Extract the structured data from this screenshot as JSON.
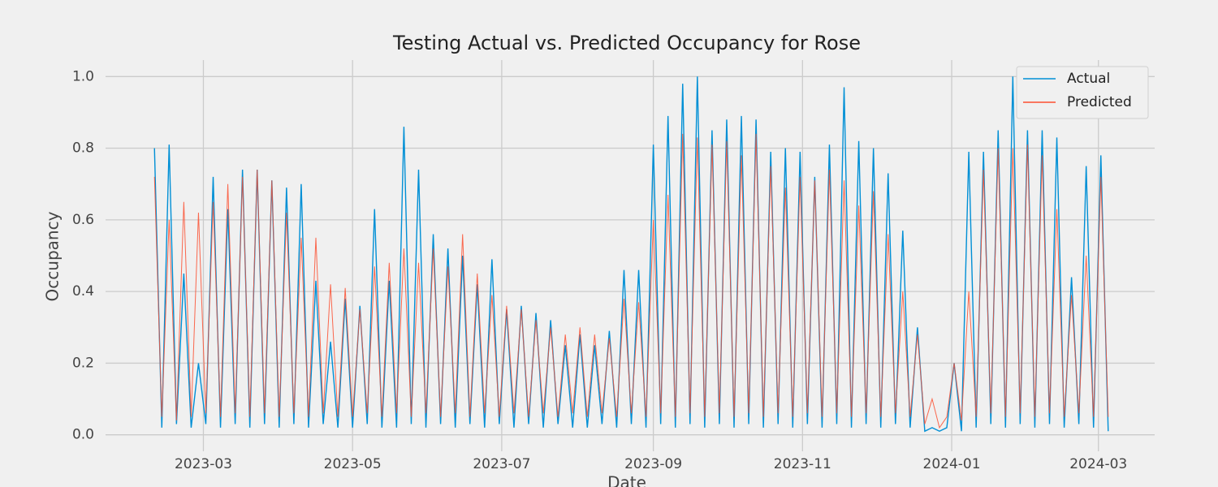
{
  "chart_data": {
    "type": "line",
    "title": "Testing Actual vs. Predicted Occupancy for Rose",
    "x_label": "Date",
    "y_label": "Occupancy",
    "x": [
      "2023-02-09",
      "2023-02-12",
      "2023-02-15",
      "2023-02-18",
      "2023-02-21",
      "2023-02-24",
      "2023-02-27",
      "2023-03-02",
      "2023-03-05",
      "2023-03-08",
      "2023-03-11",
      "2023-03-14",
      "2023-03-17",
      "2023-03-20",
      "2023-03-23",
      "2023-03-26",
      "2023-03-29",
      "2023-04-01",
      "2023-04-04",
      "2023-04-07",
      "2023-04-10",
      "2023-04-13",
      "2023-04-16",
      "2023-04-19",
      "2023-04-22",
      "2023-04-25",
      "2023-04-28",
      "2023-05-01",
      "2023-05-04",
      "2023-05-07",
      "2023-05-10",
      "2023-05-13",
      "2023-05-16",
      "2023-05-19",
      "2023-05-22",
      "2023-05-25",
      "2023-05-28",
      "2023-05-31",
      "2023-06-03",
      "2023-06-06",
      "2023-06-09",
      "2023-06-12",
      "2023-06-15",
      "2023-06-18",
      "2023-06-21",
      "2023-06-24",
      "2023-06-27",
      "2023-06-30",
      "2023-07-03",
      "2023-07-06",
      "2023-07-09",
      "2023-07-12",
      "2023-07-15",
      "2023-07-18",
      "2023-07-21",
      "2023-07-24",
      "2023-07-27",
      "2023-07-30",
      "2023-08-02",
      "2023-08-05",
      "2023-08-08",
      "2023-08-11",
      "2023-08-14",
      "2023-08-17",
      "2023-08-20",
      "2023-08-23",
      "2023-08-26",
      "2023-08-29",
      "2023-09-01",
      "2023-09-04",
      "2023-09-07",
      "2023-09-10",
      "2023-09-13",
      "2023-09-16",
      "2023-09-19",
      "2023-09-22",
      "2023-09-25",
      "2023-09-28",
      "2023-10-01",
      "2023-10-04",
      "2023-10-07",
      "2023-10-10",
      "2023-10-13",
      "2023-10-16",
      "2023-10-19",
      "2023-10-22",
      "2023-10-25",
      "2023-10-28",
      "2023-10-31",
      "2023-11-03",
      "2023-11-06",
      "2023-11-09",
      "2023-11-12",
      "2023-11-15",
      "2023-11-18",
      "2023-11-21",
      "2023-11-24",
      "2023-11-27",
      "2023-11-30",
      "2023-12-03",
      "2023-12-06",
      "2023-12-09",
      "2023-12-12",
      "2023-12-15",
      "2023-12-18",
      "2023-12-21",
      "2023-12-24",
      "2023-12-27",
      "2023-12-30",
      "2024-01-02",
      "2024-01-05",
      "2024-01-08",
      "2024-01-11",
      "2024-01-14",
      "2024-01-17",
      "2024-01-20",
      "2024-01-23",
      "2024-01-26",
      "2024-01-29",
      "2024-02-01",
      "2024-02-04",
      "2024-02-07",
      "2024-02-10",
      "2024-02-13",
      "2024-02-16",
      "2024-02-19",
      "2024-02-22",
      "2024-02-25",
      "2024-02-28",
      "2024-03-02",
      "2024-03-05"
    ],
    "series": [
      {
        "name": "Actual",
        "color": "#008fd5",
        "values": [
          0.8,
          0.02,
          0.81,
          0.03,
          0.45,
          0.02,
          0.2,
          0.03,
          0.72,
          0.02,
          0.63,
          0.03,
          0.74,
          0.02,
          0.74,
          0.03,
          0.71,
          0.02,
          0.69,
          0.03,
          0.7,
          0.02,
          0.43,
          0.03,
          0.26,
          0.02,
          0.38,
          0.02,
          0.36,
          0.03,
          0.63,
          0.02,
          0.43,
          0.02,
          0.86,
          0.03,
          0.74,
          0.02,
          0.56,
          0.03,
          0.52,
          0.02,
          0.5,
          0.03,
          0.42,
          0.02,
          0.49,
          0.03,
          0.35,
          0.02,
          0.36,
          0.03,
          0.34,
          0.02,
          0.32,
          0.03,
          0.25,
          0.02,
          0.28,
          0.02,
          0.25,
          0.03,
          0.29,
          0.02,
          0.46,
          0.03,
          0.46,
          0.02,
          0.81,
          0.03,
          0.89,
          0.02,
          0.98,
          0.03,
          1.0,
          0.02,
          0.85,
          0.03,
          0.88,
          0.02,
          0.89,
          0.03,
          0.88,
          0.02,
          0.79,
          0.03,
          0.8,
          0.02,
          0.79,
          0.03,
          0.72,
          0.02,
          0.81,
          0.03,
          0.97,
          0.02,
          0.82,
          0.03,
          0.8,
          0.02,
          0.73,
          0.03,
          0.57,
          0.02,
          0.3,
          0.01,
          0.02,
          0.01,
          0.02,
          0.2,
          0.01,
          0.79,
          0.02,
          0.79,
          0.03,
          0.85,
          0.02,
          1.0,
          0.03,
          0.85,
          0.02,
          0.85,
          0.03,
          0.83,
          0.02,
          0.44,
          0.03,
          0.75,
          0.02,
          0.78,
          0.01
        ]
      },
      {
        "name": "Predicted",
        "color": "#fc4f30",
        "values": [
          0.72,
          0.05,
          0.6,
          0.04,
          0.65,
          0.05,
          0.62,
          0.06,
          0.65,
          0.05,
          0.7,
          0.06,
          0.72,
          0.05,
          0.74,
          0.06,
          0.71,
          0.05,
          0.62,
          0.06,
          0.55,
          0.05,
          0.55,
          0.06,
          0.42,
          0.05,
          0.41,
          0.05,
          0.35,
          0.06,
          0.47,
          0.05,
          0.48,
          0.06,
          0.52,
          0.05,
          0.48,
          0.06,
          0.52,
          0.05,
          0.47,
          0.06,
          0.56,
          0.05,
          0.45,
          0.06,
          0.39,
          0.05,
          0.36,
          0.06,
          0.35,
          0.05,
          0.32,
          0.06,
          0.3,
          0.05,
          0.28,
          0.06,
          0.3,
          0.05,
          0.28,
          0.06,
          0.27,
          0.05,
          0.38,
          0.06,
          0.37,
          0.05,
          0.6,
          0.06,
          0.67,
          0.05,
          0.84,
          0.06,
          0.83,
          0.05,
          0.81,
          0.06,
          0.82,
          0.05,
          0.78,
          0.06,
          0.84,
          0.05,
          0.75,
          0.06,
          0.69,
          0.05,
          0.72,
          0.06,
          0.71,
          0.05,
          0.74,
          0.06,
          0.71,
          0.05,
          0.64,
          0.06,
          0.68,
          0.05,
          0.56,
          0.06,
          0.4,
          0.05,
          0.28,
          0.03,
          0.1,
          0.02,
          0.05,
          0.2,
          0.04,
          0.4,
          0.05,
          0.74,
          0.06,
          0.8,
          0.05,
          0.8,
          0.06,
          0.81,
          0.05,
          0.78,
          0.06,
          0.63,
          0.05,
          0.39,
          0.06,
          0.5,
          0.05,
          0.72,
          0.05
        ]
      }
    ],
    "xlim": [
      "2023-01-20",
      "2024-03-24"
    ],
    "xticks": [
      "2023-03",
      "2023-05",
      "2023-07",
      "2023-09",
      "2023-11",
      "2024-01",
      "2024-03"
    ],
    "ylim": [
      -0.046,
      1.046
    ],
    "yticks": [
      {
        "value": 0,
        "label": "0.0"
      },
      0.2,
      0.4,
      0.6,
      0.8,
      {
        "value": 1,
        "label": "1.0"
      }
    ],
    "grid": true,
    "legend": "upper right"
  }
}
